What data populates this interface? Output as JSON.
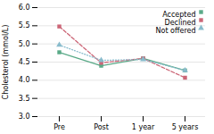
{
  "chart_data": {
    "type": "line",
    "categories": [
      "Pre",
      "Post",
      "1 year",
      "5 years"
    ],
    "series": [
      {
        "name": "Accepted",
        "color": "#5aaa88",
        "values": [
          4.77,
          4.4,
          4.6,
          4.27
        ],
        "marker": "square",
        "line_style": "solid"
      },
      {
        "name": "Declined",
        "color": "#cc6677",
        "values": [
          5.48,
          4.48,
          4.6,
          4.07
        ],
        "marker": "square",
        "line_style": "dashed"
      },
      {
        "name": "Not offered",
        "color": "#88bbcc",
        "values": [
          4.97,
          4.55,
          4.57,
          4.27
        ],
        "marker": "triangle",
        "line_style": "dotted"
      }
    ],
    "ylabel": "Cholesterol (mmol/L)",
    "ylim": [
      3.0,
      6.0
    ],
    "yticks": [
      {
        "value": 3.0,
        "label": "3.0"
      },
      3.5,
      {
        "value": 4.0,
        "label": "4.0"
      },
      4.5,
      {
        "value": 5.0,
        "label": "5.0"
      },
      5.5,
      {
        "value": 6.0,
        "label": "6.0"
      }
    ],
    "grid": true,
    "legend": "upper right"
  }
}
